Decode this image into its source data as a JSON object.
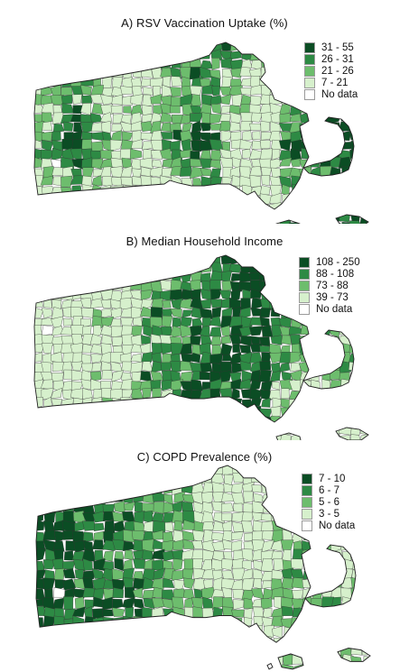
{
  "palette": {
    "c1": "#0b4d24",
    "c2": "#2d8a44",
    "c3": "#6dbd6d",
    "c4": "#d6f0cc",
    "nodata": "#ffffff",
    "border": "#222222"
  },
  "panels": [
    {
      "title": "A) RSV Vaccination Uptake (%)",
      "legend": [
        {
          "label": "31 - 55",
          "color": "#0b4d24"
        },
        {
          "label": "26 - 31",
          "color": "#2d8a44"
        },
        {
          "label": "21 - 26",
          "color": "#6dbd6d"
        },
        {
          "label": "7 - 21",
          "color": "#d6f0cc"
        },
        {
          "label": "No data",
          "color": "#ffffff"
        }
      ]
    },
    {
      "title": "B) Median Household Income",
      "legend": [
        {
          "label": "108 - 250",
          "color": "#0b4d24"
        },
        {
          "label": "88 - 108",
          "color": "#2d8a44"
        },
        {
          "label": "73 - 88",
          "color": "#6dbd6d"
        },
        {
          "label": "39 - 73",
          "color": "#d6f0cc"
        },
        {
          "label": "No data",
          "color": "#ffffff"
        }
      ]
    },
    {
      "title": "C) COPD Prevalence (%)",
      "legend": [
        {
          "label": "7 - 10",
          "color": "#0b4d24"
        },
        {
          "label": "6 - 7",
          "color": "#2d8a44"
        },
        {
          "label": "5 - 6",
          "color": "#6dbd6d"
        },
        {
          "label": "3 - 5",
          "color": "#d6f0cc"
        },
        {
          "label": "No data",
          "color": "#ffffff"
        }
      ]
    }
  ]
}
